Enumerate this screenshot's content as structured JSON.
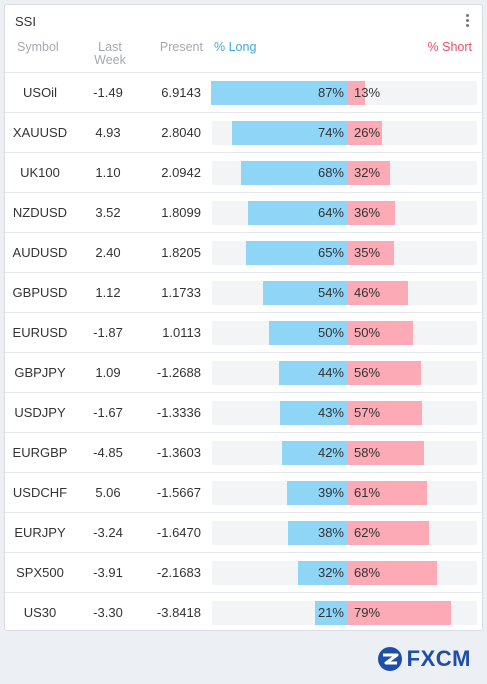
{
  "widget": {
    "title": "SSI",
    "menu_icon": "more-vertical-icon"
  },
  "columns": {
    "symbol": "Symbol",
    "last_week_line1": "Last",
    "last_week_line2": "Week",
    "present": "Present",
    "long": "% Long",
    "short": "% Short"
  },
  "colors": {
    "long": "#8fd6f6",
    "short": "#fcaab6",
    "long_header": "#3fa7dc",
    "short_header": "#e84f6a"
  },
  "rows": [
    {
      "symbol": "USOil",
      "last_week": "-1.49",
      "present": "6.9143",
      "long_pct": 87,
      "short_pct": 13,
      "long_label": "87%",
      "short_label": "13%"
    },
    {
      "symbol": "XAUUSD",
      "last_week": "4.93",
      "present": "2.8040",
      "long_pct": 74,
      "short_pct": 26,
      "long_label": "74%",
      "short_label": "26%"
    },
    {
      "symbol": "UK100",
      "last_week": "1.10",
      "present": "2.0942",
      "long_pct": 68,
      "short_pct": 32,
      "long_label": "68%",
      "short_label": "32%"
    },
    {
      "symbol": "NZDUSD",
      "last_week": "3.52",
      "present": "1.8099",
      "long_pct": 64,
      "short_pct": 36,
      "long_label": "64%",
      "short_label": "36%"
    },
    {
      "symbol": "AUDUSD",
      "last_week": "2.40",
      "present": "1.8205",
      "long_pct": 65,
      "short_pct": 35,
      "long_label": "65%",
      "short_label": "35%"
    },
    {
      "symbol": "GBPUSD",
      "last_week": "1.12",
      "present": "1.1733",
      "long_pct": 54,
      "short_pct": 46,
      "long_label": "54%",
      "short_label": "46%"
    },
    {
      "symbol": "EURUSD",
      "last_week": "-1.87",
      "present": "1.0113",
      "long_pct": 50,
      "short_pct": 50,
      "long_label": "50%",
      "short_label": "50%"
    },
    {
      "symbol": "GBPJPY",
      "last_week": "1.09",
      "present": "-1.2688",
      "long_pct": 44,
      "short_pct": 56,
      "long_label": "44%",
      "short_label": "56%"
    },
    {
      "symbol": "USDJPY",
      "last_week": "-1.67",
      "present": "-1.3336",
      "long_pct": 43,
      "short_pct": 57,
      "long_label": "43%",
      "short_label": "57%"
    },
    {
      "symbol": "EURGBP",
      "last_week": "-4.85",
      "present": "-1.3603",
      "long_pct": 42,
      "short_pct": 58,
      "long_label": "42%",
      "short_label": "58%"
    },
    {
      "symbol": "USDCHF",
      "last_week": "5.06",
      "present": "-1.5667",
      "long_pct": 39,
      "short_pct": 61,
      "long_label": "39%",
      "short_label": "61%"
    },
    {
      "symbol": "EURJPY",
      "last_week": "-3.24",
      "present": "-1.6470",
      "long_pct": 38,
      "short_pct": 62,
      "long_label": "38%",
      "short_label": "62%"
    },
    {
      "symbol": "SPX500",
      "last_week": "-3.91",
      "present": "-2.1683",
      "long_pct": 32,
      "short_pct": 68,
      "long_label": "32%",
      "short_label": "68%"
    },
    {
      "symbol": "US30",
      "last_week": "-3.30",
      "present": "-3.8418",
      "long_pct": 21,
      "short_pct": 79,
      "long_label": "21%",
      "short_label": "79%"
    }
  ],
  "footer": {
    "brand": "FXCM",
    "logo_icon": "fxcm-logo-icon"
  }
}
